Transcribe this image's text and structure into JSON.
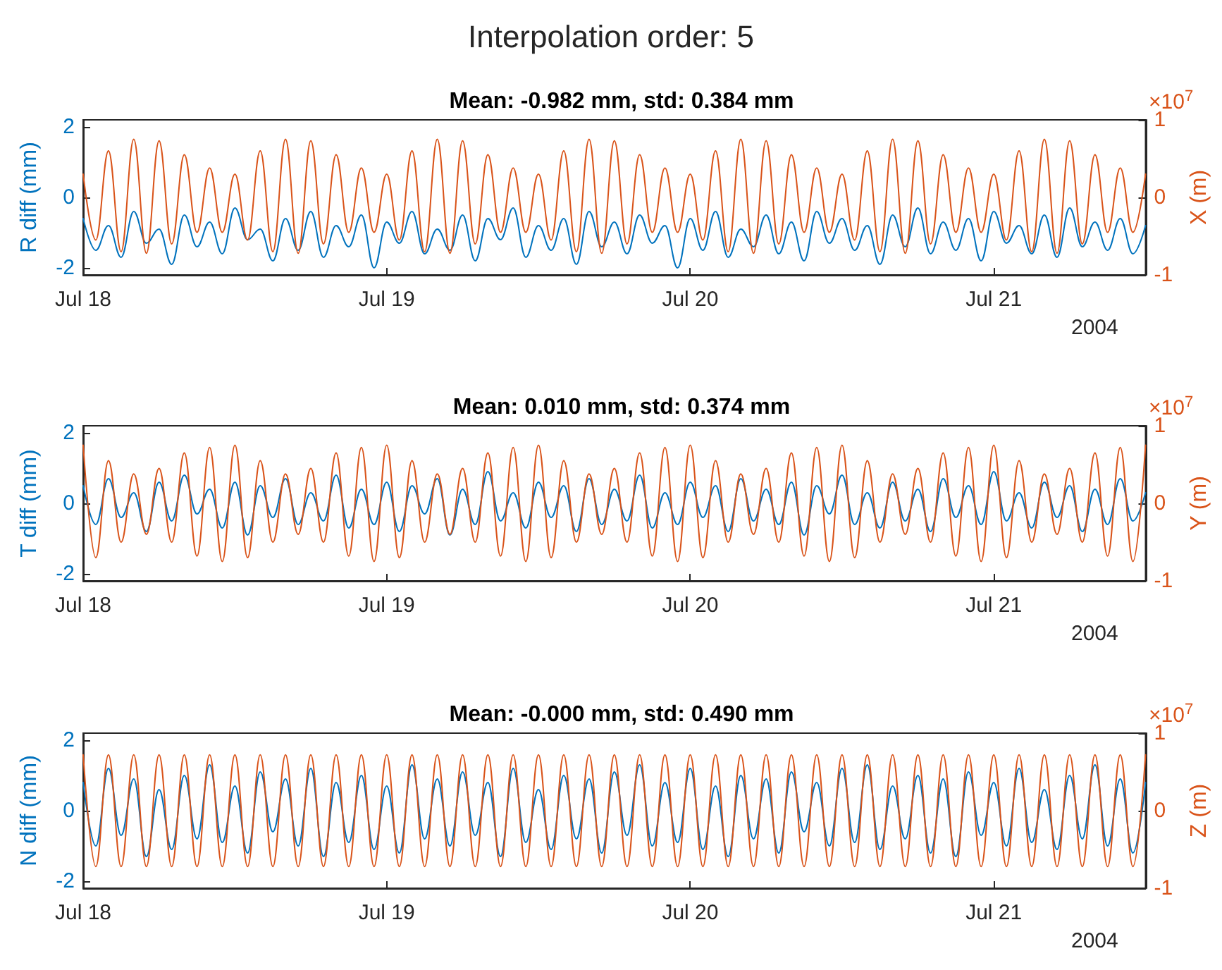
{
  "chart_data": [
    {
      "type": "line",
      "title": "Interpolation order: 5",
      "subtitle": "Mean: -0.982 mm, std: 0.384 mm",
      "ylabel": "R diff (mm)",
      "y2label": "X (m)",
      "annotations": [
        "×10$^{7}$",
        "2004"
      ],
      "marker": "none",
      "line_style": "solid",
      "xlim": [
        "2004-07-18T00:00",
        "2004-07-21T12:00"
      ],
      "xticks": [
        {
          "value": "2004-07-18",
          "label": "Jul 18"
        },
        {
          "value": "2004-07-19",
          "label": "Jul 19"
        },
        {
          "value": "2004-07-20",
          "label": "Jul 20"
        },
        {
          "value": "2004-07-21",
          "label": "Jul 21"
        }
      ],
      "ylim": [
        -2.2,
        2.2
      ],
      "yticks": [
        -2,
        0,
        2
      ],
      "y2lim": [
        -1,
        1
      ],
      "y2ticks": [
        -1,
        0,
        1
      ],
      "x": [
        "2004-07-18T00:00",
        "2004-07-18T01:00",
        "2004-07-18T02:00",
        "2004-07-18T03:00",
        "2004-07-18T04:00",
        "2004-07-18T05:00",
        "2004-07-18T06:00",
        "2004-07-18T07:00",
        "2004-07-18T08:00",
        "2004-07-18T09:00",
        "2004-07-18T10:00",
        "2004-07-18T11:00",
        "2004-07-18T12:00",
        "2004-07-18T13:00",
        "2004-07-18T14:00",
        "2004-07-18T15:00",
        "2004-07-18T16:00",
        "2004-07-18T17:00",
        "2004-07-18T18:00",
        "2004-07-18T19:00",
        "2004-07-18T20:00",
        "2004-07-18T21:00",
        "2004-07-18T22:00",
        "2004-07-18T23:00",
        "2004-07-19T00:00",
        "2004-07-19T01:00",
        "2004-07-19T02:00",
        "2004-07-19T03:00",
        "2004-07-19T04:00",
        "2004-07-19T05:00",
        "2004-07-19T06:00",
        "2004-07-19T07:00",
        "2004-07-19T08:00",
        "2004-07-19T09:00",
        "2004-07-19T10:00",
        "2004-07-19T11:00",
        "2004-07-19T12:00",
        "2004-07-19T13:00",
        "2004-07-19T14:00",
        "2004-07-19T15:00",
        "2004-07-19T16:00",
        "2004-07-19T17:00",
        "2004-07-19T18:00",
        "2004-07-19T19:00",
        "2004-07-19T20:00",
        "2004-07-19T21:00",
        "2004-07-19T22:00",
        "2004-07-19T23:00",
        "2004-07-20T00:00",
        "2004-07-20T01:00",
        "2004-07-20T02:00",
        "2004-07-20T03:00",
        "2004-07-20T04:00",
        "2004-07-20T05:00",
        "2004-07-20T06:00",
        "2004-07-20T07:00",
        "2004-07-20T08:00",
        "2004-07-20T09:00",
        "2004-07-20T10:00",
        "2004-07-20T11:00",
        "2004-07-20T12:00",
        "2004-07-20T13:00",
        "2004-07-20T14:00",
        "2004-07-20T15:00",
        "2004-07-20T16:00",
        "2004-07-20T17:00",
        "2004-07-20T18:00",
        "2004-07-20T19:00",
        "2004-07-20T20:00",
        "2004-07-20T21:00",
        "2004-07-20T22:00",
        "2004-07-20T23:00",
        "2004-07-21T00:00",
        "2004-07-21T01:00",
        "2004-07-21T02:00",
        "2004-07-21T03:00",
        "2004-07-21T04:00",
        "2004-07-21T05:00",
        "2004-07-21T06:00",
        "2004-07-21T07:00",
        "2004-07-21T08:00",
        "2004-07-21T09:00",
        "2004-07-21T10:00",
        "2004-07-21T11:00",
        "2004-07-21T12:00"
      ],
      "series": [
        {
          "color": "#0072bd",
          "values": [
            -0.6,
            -1.5,
            -0.8,
            -1.7,
            -0.4,
            -1.3,
            -0.9,
            -1.9,
            -0.5,
            -1.4,
            -0.7,
            -1.6,
            -0.3,
            -1.2,
            -0.9,
            -1.8,
            -0.6,
            -1.5,
            -0.4,
            -1.7,
            -0.8,
            -1.4,
            -0.5,
            -2.0,
            -0.7,
            -1.3,
            -0.4,
            -1.6,
            -0.9,
            -1.5,
            -0.5,
            -1.8,
            -0.6,
            -1.2,
            -0.3,
            -1.7,
            -0.8,
            -1.5,
            -0.6,
            -1.9,
            -0.4,
            -1.4,
            -0.7,
            -1.6,
            -0.5,
            -1.3,
            -0.8,
            -2.0,
            -0.6,
            -1.5,
            -0.4,
            -1.7,
            -0.9,
            -1.4,
            -0.5,
            -1.6,
            -0.7,
            -1.8,
            -0.4,
            -1.3,
            -0.6,
            -1.5,
            -0.8,
            -1.9,
            -0.5,
            -1.4,
            -0.3,
            -1.6,
            -0.7,
            -1.5,
            -0.6,
            -1.8,
            -0.4,
            -1.3,
            -0.8,
            -1.6,
            -0.5,
            -1.7,
            -0.3,
            -1.4,
            -0.7,
            -1.5,
            -0.6,
            -1.6,
            -0.8
          ]
        },
        {
          "color": "#d95319",
          "axis": "y2",
          "values": [
            0.3,
            -0.55,
            0.6,
            -0.7,
            0.75,
            -0.72,
            0.73,
            -0.6,
            0.55,
            -0.45,
            0.38,
            -0.45,
            0.3,
            -0.55,
            0.6,
            -0.7,
            0.75,
            -0.72,
            0.73,
            -0.6,
            0.55,
            -0.45,
            0.38,
            -0.45,
            0.3,
            -0.55,
            0.6,
            -0.7,
            0.75,
            -0.72,
            0.73,
            -0.6,
            0.55,
            -0.45,
            0.38,
            -0.45,
            0.3,
            -0.55,
            0.6,
            -0.7,
            0.75,
            -0.72,
            0.73,
            -0.6,
            0.55,
            -0.45,
            0.38,
            -0.45,
            0.3,
            -0.55,
            0.6,
            -0.7,
            0.75,
            -0.72,
            0.73,
            -0.6,
            0.55,
            -0.45,
            0.38,
            -0.45,
            0.3,
            -0.55,
            0.6,
            -0.7,
            0.75,
            -0.72,
            0.73,
            -0.6,
            0.55,
            -0.45,
            0.38,
            -0.45,
            0.3,
            -0.55,
            0.6,
            -0.7,
            0.75,
            -0.72,
            0.73,
            -0.6,
            0.55,
            -0.45,
            0.38,
            -0.45,
            0.3
          ]
        }
      ]
    },
    {
      "type": "line",
      "subtitle": "Mean: 0.010 mm, std: 0.374 mm",
      "ylabel": "T diff (mm)",
      "y2label": "Y (m)",
      "annotations": [
        "×10$^{7}$",
        "2004"
      ],
      "marker": "none",
      "line_style": "solid",
      "xlim": [
        "2004-07-18T00:00",
        "2004-07-21T12:00"
      ],
      "xticks": [
        {
          "value": "2004-07-18",
          "label": "Jul 18"
        },
        {
          "value": "2004-07-19",
          "label": "Jul 19"
        },
        {
          "value": "2004-07-20",
          "label": "Jul 20"
        },
        {
          "value": "2004-07-21",
          "label": "Jul 21"
        }
      ],
      "ylim": [
        -2.2,
        2.2
      ],
      "yticks": [
        -2,
        0,
        2
      ],
      "y2lim": [
        -1,
        1
      ],
      "y2ticks": [
        -1,
        0,
        1
      ],
      "x": [
        "2004-07-18T00:00",
        "2004-07-18T01:00",
        "2004-07-18T02:00",
        "2004-07-18T03:00",
        "2004-07-18T04:00",
        "2004-07-18T05:00",
        "2004-07-18T06:00",
        "2004-07-18T07:00",
        "2004-07-18T08:00",
        "2004-07-18T09:00",
        "2004-07-18T10:00",
        "2004-07-18T11:00",
        "2004-07-18T12:00",
        "2004-07-18T13:00",
        "2004-07-18T14:00",
        "2004-07-18T15:00",
        "2004-07-18T16:00",
        "2004-07-18T17:00",
        "2004-07-18T18:00",
        "2004-07-18T19:00",
        "2004-07-18T20:00",
        "2004-07-18T21:00",
        "2004-07-18T22:00",
        "2004-07-18T23:00",
        "2004-07-19T00:00",
        "2004-07-19T01:00",
        "2004-07-19T02:00",
        "2004-07-19T03:00",
        "2004-07-19T04:00",
        "2004-07-19T05:00",
        "2004-07-19T06:00",
        "2004-07-19T07:00",
        "2004-07-19T08:00",
        "2004-07-19T09:00",
        "2004-07-19T10:00",
        "2004-07-19T11:00",
        "2004-07-19T12:00",
        "2004-07-19T13:00",
        "2004-07-19T14:00",
        "2004-07-19T15:00",
        "2004-07-19T16:00",
        "2004-07-19T17:00",
        "2004-07-19T18:00",
        "2004-07-19T19:00",
        "2004-07-19T20:00",
        "2004-07-19T21:00",
        "2004-07-19T22:00",
        "2004-07-19T23:00",
        "2004-07-20T00:00",
        "2004-07-20T01:00",
        "2004-07-20T02:00",
        "2004-07-20T03:00",
        "2004-07-20T04:00",
        "2004-07-20T05:00",
        "2004-07-20T06:00",
        "2004-07-20T07:00",
        "2004-07-20T08:00",
        "2004-07-20T09:00",
        "2004-07-20T10:00",
        "2004-07-20T11:00",
        "2004-07-20T12:00",
        "2004-07-20T13:00",
        "2004-07-20T14:00",
        "2004-07-20T15:00",
        "2004-07-20T16:00",
        "2004-07-20T17:00",
        "2004-07-20T18:00",
        "2004-07-20T19:00",
        "2004-07-20T20:00",
        "2004-07-20T21:00",
        "2004-07-20T22:00",
        "2004-07-20T23:00",
        "2004-07-21T00:00",
        "2004-07-21T01:00",
        "2004-07-21T02:00",
        "2004-07-21T03:00",
        "2004-07-21T04:00",
        "2004-07-21T05:00",
        "2004-07-21T06:00",
        "2004-07-21T07:00",
        "2004-07-21T08:00",
        "2004-07-21T09:00",
        "2004-07-21T10:00",
        "2004-07-21T11:00",
        "2004-07-21T12:00"
      ],
      "series": [
        {
          "color": "#0072bd",
          "values": [
            0.5,
            -0.6,
            0.7,
            -0.4,
            0.3,
            -0.8,
            0.6,
            -0.5,
            0.8,
            -0.3,
            0.4,
            -0.7,
            0.6,
            -0.9,
            0.5,
            -0.4,
            0.7,
            -0.6,
            0.3,
            -0.5,
            0.8,
            -0.7,
            0.4,
            -0.6,
            0.6,
            -0.8,
            0.5,
            -0.3,
            0.7,
            -0.9,
            0.4,
            -0.6,
            0.9,
            -0.5,
            0.3,
            -0.7,
            0.6,
            -0.4,
            0.5,
            -0.8,
            0.7,
            -0.6,
            0.4,
            -0.5,
            0.8,
            -0.7,
            0.3,
            -0.6,
            0.6,
            -0.4,
            0.5,
            -0.8,
            0.7,
            -0.5,
            0.4,
            -0.6,
            0.6,
            -0.9,
            0.5,
            -0.3,
            0.8,
            -0.6,
            0.3,
            -0.7,
            0.6,
            -0.5,
            0.4,
            -0.8,
            0.7,
            -0.4,
            0.5,
            -0.6,
            0.9,
            -0.5,
            0.3,
            -0.7,
            0.6,
            -0.4,
            0.5,
            -0.8,
            0.4,
            -0.6,
            0.7,
            -0.5,
            0.3
          ]
        },
        {
          "color": "#d95319",
          "axis": "y2",
          "values": [
            0.75,
            -0.7,
            0.55,
            -0.5,
            0.38,
            -0.4,
            0.45,
            -0.5,
            0.65,
            -0.68,
            0.72,
            -0.75,
            0.75,
            -0.7,
            0.55,
            -0.5,
            0.38,
            -0.4,
            0.45,
            -0.5,
            0.65,
            -0.68,
            0.72,
            -0.75,
            0.75,
            -0.7,
            0.55,
            -0.5,
            0.38,
            -0.4,
            0.45,
            -0.5,
            0.65,
            -0.68,
            0.72,
            -0.75,
            0.75,
            -0.7,
            0.55,
            -0.5,
            0.38,
            -0.4,
            0.45,
            -0.5,
            0.65,
            -0.68,
            0.72,
            -0.75,
            0.75,
            -0.7,
            0.55,
            -0.5,
            0.38,
            -0.4,
            0.45,
            -0.5,
            0.65,
            -0.68,
            0.72,
            -0.75,
            0.75,
            -0.7,
            0.55,
            -0.5,
            0.38,
            -0.4,
            0.45,
            -0.5,
            0.65,
            -0.68,
            0.72,
            -0.75,
            0.75,
            -0.7,
            0.55,
            -0.5,
            0.38,
            -0.4,
            0.45,
            -0.5,
            0.65,
            -0.68,
            0.72,
            -0.75,
            0.75
          ]
        }
      ]
    },
    {
      "type": "line",
      "subtitle": "Mean: -0.000 mm, std: 0.490 mm",
      "ylabel": "N diff (mm)",
      "y2label": "Z (m)",
      "annotations": [
        "×10$^{7}$",
        "2004"
      ],
      "marker": "none",
      "line_style": "solid",
      "xlim": [
        "2004-07-18T00:00",
        "2004-07-21T12:00"
      ],
      "xticks": [
        {
          "value": "2004-07-18",
          "label": "Jul 18"
        },
        {
          "value": "2004-07-19",
          "label": "Jul 19"
        },
        {
          "value": "2004-07-20",
          "label": "Jul 20"
        },
        {
          "value": "2004-07-21",
          "label": "Jul 21"
        }
      ],
      "ylim": [
        -2.2,
        2.2
      ],
      "yticks": [
        -2,
        0,
        2
      ],
      "y2lim": [
        -1,
        1
      ],
      "y2ticks": [
        -1,
        0,
        1
      ],
      "x": [
        "2004-07-18T00:00",
        "2004-07-18T01:00",
        "2004-07-18T02:00",
        "2004-07-18T03:00",
        "2004-07-18T04:00",
        "2004-07-18T05:00",
        "2004-07-18T06:00",
        "2004-07-18T07:00",
        "2004-07-18T08:00",
        "2004-07-18T09:00",
        "2004-07-18T10:00",
        "2004-07-18T11:00",
        "2004-07-18T12:00",
        "2004-07-18T13:00",
        "2004-07-18T14:00",
        "2004-07-18T15:00",
        "2004-07-18T16:00",
        "2004-07-18T17:00",
        "2004-07-18T18:00",
        "2004-07-18T19:00",
        "2004-07-18T20:00",
        "2004-07-18T21:00",
        "2004-07-18T22:00",
        "2004-07-18T23:00",
        "2004-07-19T00:00",
        "2004-07-19T01:00",
        "2004-07-19T02:00",
        "2004-07-19T03:00",
        "2004-07-19T04:00",
        "2004-07-19T05:00",
        "2004-07-19T06:00",
        "2004-07-19T07:00",
        "2004-07-19T08:00",
        "2004-07-19T09:00",
        "2004-07-19T10:00",
        "2004-07-19T11:00",
        "2004-07-19T12:00",
        "2004-07-19T13:00",
        "2004-07-19T14:00",
        "2004-07-19T15:00",
        "2004-07-19T16:00",
        "2004-07-19T17:00",
        "2004-07-19T18:00",
        "2004-07-19T19:00",
        "2004-07-19T20:00",
        "2004-07-19T21:00",
        "2004-07-19T22:00",
        "2004-07-19T23:00",
        "2004-07-20T00:00",
        "2004-07-20T01:00",
        "2004-07-20T02:00",
        "2004-07-20T03:00",
        "2004-07-20T04:00",
        "2004-07-20T05:00",
        "2004-07-20T06:00",
        "2004-07-20T07:00",
        "2004-07-20T08:00",
        "2004-07-20T09:00",
        "2004-07-20T10:00",
        "2004-07-20T11:00",
        "2004-07-20T12:00",
        "2004-07-20T13:00",
        "2004-07-20T14:00",
        "2004-07-20T15:00",
        "2004-07-20T16:00",
        "2004-07-20T17:00",
        "2004-07-20T18:00",
        "2004-07-20T19:00",
        "2004-07-20T20:00",
        "2004-07-20T21:00",
        "2004-07-20T22:00",
        "2004-07-20T23:00",
        "2004-07-21T00:00",
        "2004-07-21T01:00",
        "2004-07-21T02:00",
        "2004-07-21T03:00",
        "2004-07-21T04:00",
        "2004-07-21T05:00",
        "2004-07-21T06:00",
        "2004-07-21T07:00",
        "2004-07-21T08:00",
        "2004-07-21T09:00",
        "2004-07-21T10:00",
        "2004-07-21T11:00",
        "2004-07-21T12:00"
      ],
      "series": [
        {
          "color": "#0072bd",
          "values": [
            0.8,
            -1.0,
            1.2,
            -0.7,
            0.9,
            -1.3,
            0.6,
            -1.1,
            1.0,
            -0.8,
            1.3,
            -0.9,
            0.7,
            -1.2,
            1.1,
            -0.6,
            0.9,
            -1.0,
            1.2,
            -1.3,
            0.8,
            -0.9,
            1.0,
            -1.1,
            0.7,
            -1.2,
            1.3,
            -0.8,
            0.9,
            -1.0,
            1.1,
            -0.7,
            0.8,
            -1.3,
            1.2,
            -0.9,
            0.6,
            -1.1,
            1.0,
            -0.8,
            0.9,
            -1.2,
            1.1,
            -0.7,
            1.3,
            -1.0,
            0.8,
            -0.9,
            1.2,
            -1.1,
            0.7,
            -1.3,
            1.0,
            -0.8,
            0.9,
            -1.2,
            1.1,
            -0.6,
            0.8,
            -1.0,
            1.2,
            -0.9,
            1.3,
            -1.1,
            0.7,
            -0.8,
            1.0,
            -1.2,
            0.9,
            -1.3,
            1.1,
            -0.7,
            0.8,
            -1.0,
            1.2,
            -0.9,
            0.6,
            -1.1,
            1.0,
            -0.8,
            1.3,
            -1.0,
            0.9,
            -1.2,
            0.8
          ]
        },
        {
          "color": "#d95319",
          "axis": "y2",
          "values": [
            0.72,
            -0.72,
            0.72,
            -0.72,
            0.72,
            -0.72,
            0.72,
            -0.72,
            0.72,
            -0.72,
            0.72,
            -0.72,
            0.72,
            -0.72,
            0.72,
            -0.72,
            0.72,
            -0.72,
            0.72,
            -0.72,
            0.72,
            -0.72,
            0.72,
            -0.72,
            0.72,
            -0.72,
            0.72,
            -0.72,
            0.72,
            -0.72,
            0.72,
            -0.72,
            0.72,
            -0.72,
            0.72,
            -0.72,
            0.72,
            -0.72,
            0.72,
            -0.72,
            0.72,
            -0.72,
            0.72,
            -0.72,
            0.72,
            -0.72,
            0.72,
            -0.72,
            0.72,
            -0.72,
            0.72,
            -0.72,
            0.72,
            -0.72,
            0.72,
            -0.72,
            0.72,
            -0.72,
            0.72,
            -0.72,
            0.72,
            -0.72,
            0.72,
            -0.72,
            0.72,
            -0.72,
            0.72,
            -0.72,
            0.72,
            -0.72,
            0.72,
            -0.72,
            0.72,
            -0.72,
            0.72,
            -0.72,
            0.72,
            -0.72,
            0.72,
            -0.72,
            0.72,
            -0.72,
            0.72,
            -0.72,
            0.72
          ]
        }
      ]
    }
  ]
}
